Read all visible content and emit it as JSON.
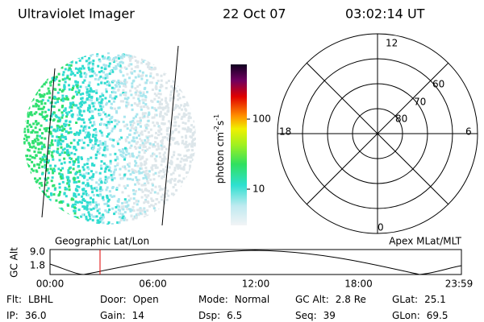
{
  "header": {
    "instrument": "Ultraviolet Imager",
    "date": "22 Oct 07",
    "time": "03:02:14 UT"
  },
  "colorbar": {
    "label": {
      "base": "photon cm",
      "exp1": "-2",
      "unit2": "s",
      "exp2": "-1"
    },
    "ticks": [
      "100",
      "10"
    ]
  },
  "dial": {
    "mlt_labels": {
      "noon": "12",
      "dusk": "18",
      "dawn": "6",
      "midnight": "0"
    },
    "lat_labels": [
      "80",
      "70",
      "60"
    ]
  },
  "map_labels": {
    "left": "Geographic Lat/Lon",
    "right": "Apex MLat/MLT"
  },
  "altitude_plot": {
    "y_label": "GC Alt",
    "yticks": [
      "9.0",
      "1.8"
    ],
    "xticks": [
      "00:00",
      "06:00",
      "12:00",
      "18:00",
      "23:59"
    ]
  },
  "info": [
    [
      [
        "Flt:",
        "LBHL"
      ],
      [
        "Door:",
        "Open"
      ],
      [
        "Mode:",
        "Normal"
      ],
      [
        "GC Alt:",
        "2.8 Re"
      ],
      [
        "GLat:",
        "25.1"
      ]
    ],
    [
      [
        "IP:",
        "36.0"
      ],
      [
        "Gain:",
        "14"
      ],
      [
        "Dsp:",
        "6.5"
      ],
      [
        "Seq:",
        "39"
      ],
      [
        "GLon:",
        "69.5"
      ]
    ]
  ]
}
